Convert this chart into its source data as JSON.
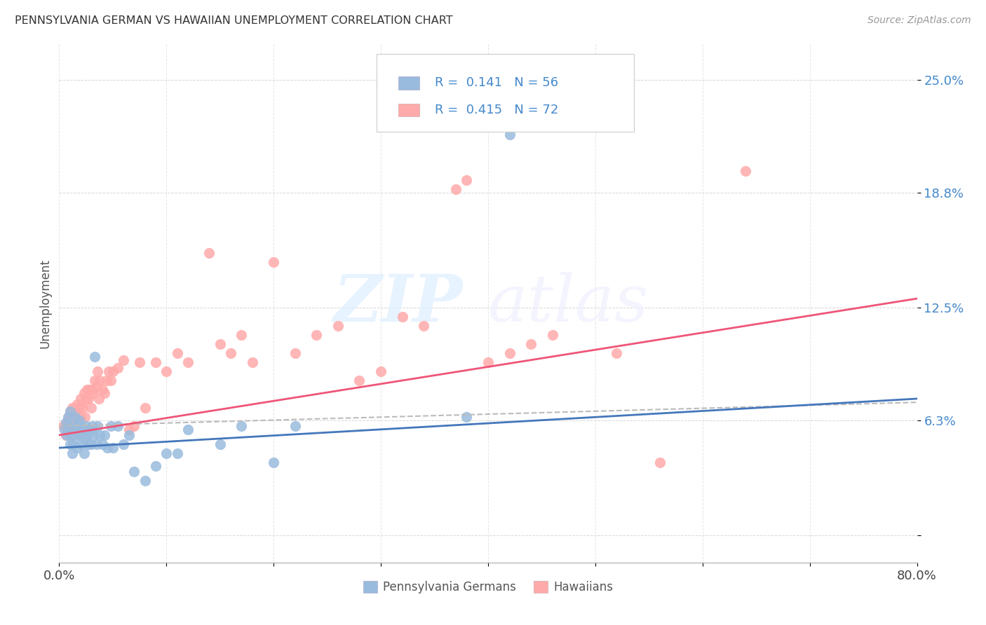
{
  "title": "PENNSYLVANIA GERMAN VS HAWAIIAN UNEMPLOYMENT CORRELATION CHART",
  "source": "Source: ZipAtlas.com",
  "ylabel": "Unemployment",
  "y_ticks": [
    0.0,
    0.063,
    0.125,
    0.188,
    0.25
  ],
  "y_tick_labels": [
    "",
    "6.3%",
    "12.5%",
    "18.8%",
    "25.0%"
  ],
  "x_range": [
    0.0,
    0.8
  ],
  "y_range": [
    -0.015,
    0.27
  ],
  "legend_r1": "R =  0.141",
  "legend_n1": "N = 56",
  "legend_r2": "R =  0.415",
  "legend_n2": "N = 72",
  "color_blue": "#99BBDD",
  "color_pink": "#FFAAAA",
  "color_blue_line": "#4477BB",
  "color_pink_line": "#EE5577",
  "color_dashed": "#BBBBBB",
  "color_blue_text": "#4488CC",
  "blue_scatter_x": [
    0.005,
    0.006,
    0.007,
    0.008,
    0.009,
    0.01,
    0.01,
    0.01,
    0.01,
    0.012,
    0.013,
    0.014,
    0.015,
    0.015,
    0.016,
    0.017,
    0.018,
    0.019,
    0.02,
    0.02,
    0.021,
    0.022,
    0.023,
    0.024,
    0.025,
    0.026,
    0.027,
    0.028,
    0.03,
    0.03,
    0.031,
    0.032,
    0.033,
    0.035,
    0.036,
    0.038,
    0.04,
    0.042,
    0.045,
    0.048,
    0.05,
    0.055,
    0.06,
    0.065,
    0.07,
    0.08,
    0.09,
    0.1,
    0.11,
    0.12,
    0.15,
    0.17,
    0.2,
    0.22,
    0.38,
    0.42
  ],
  "blue_scatter_y": [
    0.058,
    0.062,
    0.055,
    0.065,
    0.06,
    0.05,
    0.055,
    0.058,
    0.068,
    0.045,
    0.05,
    0.055,
    0.058,
    0.065,
    0.06,
    0.048,
    0.055,
    0.063,
    0.05,
    0.06,
    0.055,
    0.058,
    0.045,
    0.053,
    0.06,
    0.055,
    0.05,
    0.058,
    0.05,
    0.058,
    0.06,
    0.055,
    0.098,
    0.05,
    0.06,
    0.055,
    0.05,
    0.055,
    0.048,
    0.06,
    0.048,
    0.06,
    0.05,
    0.055,
    0.035,
    0.03,
    0.038,
    0.045,
    0.045,
    0.058,
    0.05,
    0.06,
    0.04,
    0.06,
    0.065,
    0.22
  ],
  "pink_scatter_x": [
    0.004,
    0.006,
    0.007,
    0.008,
    0.009,
    0.01,
    0.01,
    0.011,
    0.012,
    0.013,
    0.014,
    0.015,
    0.016,
    0.017,
    0.018,
    0.019,
    0.02,
    0.02,
    0.021,
    0.022,
    0.023,
    0.024,
    0.025,
    0.026,
    0.027,
    0.028,
    0.03,
    0.031,
    0.032,
    0.033,
    0.035,
    0.036,
    0.037,
    0.038,
    0.04,
    0.042,
    0.044,
    0.046,
    0.048,
    0.05,
    0.055,
    0.06,
    0.065,
    0.07,
    0.075,
    0.08,
    0.09,
    0.1,
    0.11,
    0.12,
    0.14,
    0.15,
    0.16,
    0.17,
    0.18,
    0.2,
    0.22,
    0.24,
    0.26,
    0.28,
    0.3,
    0.32,
    0.34,
    0.37,
    0.38,
    0.4,
    0.42,
    0.44,
    0.46,
    0.52,
    0.56,
    0.64
  ],
  "pink_scatter_y": [
    0.06,
    0.055,
    0.062,
    0.058,
    0.065,
    0.063,
    0.068,
    0.06,
    0.07,
    0.058,
    0.065,
    0.06,
    0.068,
    0.072,
    0.065,
    0.07,
    0.065,
    0.075,
    0.072,
    0.07,
    0.078,
    0.065,
    0.075,
    0.08,
    0.075,
    0.08,
    0.07,
    0.08,
    0.078,
    0.085,
    0.082,
    0.09,
    0.075,
    0.085,
    0.08,
    0.078,
    0.085,
    0.09,
    0.085,
    0.09,
    0.092,
    0.096,
    0.058,
    0.06,
    0.095,
    0.07,
    0.095,
    0.09,
    0.1,
    0.095,
    0.155,
    0.105,
    0.1,
    0.11,
    0.095,
    0.15,
    0.1,
    0.11,
    0.115,
    0.085,
    0.09,
    0.12,
    0.115,
    0.19,
    0.195,
    0.095,
    0.1,
    0.105,
    0.11,
    0.1,
    0.04,
    0.2
  ],
  "blue_line_x": [
    0.0,
    0.8
  ],
  "blue_line_y": [
    0.048,
    0.075
  ],
  "pink_line_x": [
    0.0,
    0.8
  ],
  "pink_line_y": [
    0.055,
    0.13
  ],
  "dashed_line_x": [
    0.0,
    0.8
  ],
  "dashed_line_y": [
    0.06,
    0.073
  ],
  "watermark_zip": "ZIP",
  "watermark_atlas": "atlas",
  "legend_label_1": "Pennsylvania Germans",
  "legend_label_2": "Hawaiians"
}
